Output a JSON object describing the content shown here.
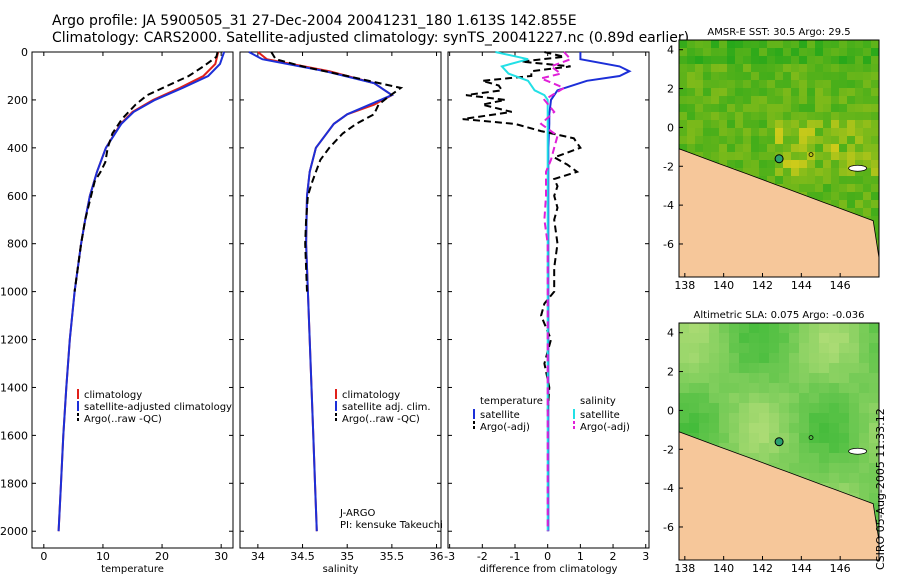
{
  "header": {
    "line1": "Argo profile: JA 5900505_31 27-Dec-2004 20041231_180 1.613S 142.855E",
    "line2": "Climatology: CARS2000. Satellite-adjusted climatology: synTS_20041227.nc (0.89d earlier)"
  },
  "credit": "CSIRO 05-Aug-2005 11:33:12",
  "colors": {
    "climatology": "#e0201a",
    "satellite": "#1c2fd8",
    "argo": "#000000",
    "satellite_salinity": "#22e0e6",
    "argo_salinity": "#e020d8",
    "land": "#f6c79a",
    "ocean_low": "#1aa51a",
    "ocean_high": "#f0d21a"
  },
  "chart_data": [
    {
      "type": "line",
      "id": "temperature",
      "xlabel": "temperature",
      "ylabel": "",
      "xlim": [
        -2,
        32
      ],
      "ylim": [
        2070,
        0
      ],
      "xticks": [
        0,
        10,
        20,
        30
      ],
      "yticks": [
        0,
        200,
        400,
        600,
        800,
        1000,
        1200,
        1400,
        1600,
        1800,
        2000
      ],
      "legend": [
        "climatology",
        "satellite-adjusted climatology",
        "Argo(..raw -QC)"
      ],
      "legend_position": "lower-right",
      "annotations": [],
      "series": [
        {
          "name": "climatology",
          "color": "climatology",
          "dash": "",
          "depth": [
            0,
            50,
            100,
            150,
            200,
            250,
            300,
            400,
            500,
            600,
            700,
            800,
            1000,
            1200,
            1400,
            1600,
            1800,
            2000
          ],
          "values": [
            29.5,
            29.0,
            27.0,
            23.0,
            18.5,
            15.0,
            13.0,
            10.5,
            9.0,
            7.8,
            7.0,
            6.3,
            5.2,
            4.4,
            3.8,
            3.3,
            2.9,
            2.5
          ]
        },
        {
          "name": "satellite-adjusted climatology",
          "color": "satellite",
          "dash": "",
          "depth": [
            0,
            50,
            100,
            150,
            200,
            250,
            300,
            400,
            500,
            600,
            700,
            800,
            1000,
            1200,
            1400,
            1600,
            1800,
            2000
          ],
          "values": [
            30.5,
            29.8,
            27.8,
            23.5,
            18.8,
            15.2,
            13.1,
            10.5,
            9.0,
            7.8,
            7.0,
            6.3,
            5.2,
            4.4,
            3.8,
            3.3,
            2.9,
            2.5
          ]
        },
        {
          "name": "Argo(..raw -QC)",
          "color": "argo",
          "dash": "7 4",
          "depth": [
            0,
            20,
            60,
            100,
            140,
            180,
            220,
            280,
            340,
            400,
            460,
            500,
            540,
            600,
            700,
            800,
            1000
          ],
          "values": [
            29.4,
            29.2,
            27.0,
            24.5,
            21.0,
            17.5,
            15.5,
            13.2,
            11.6,
            10.8,
            10.4,
            9.6,
            8.6,
            8.0,
            7.0,
            6.3,
            5.2
          ]
        }
      ]
    },
    {
      "type": "line",
      "id": "salinity",
      "xlabel": "salinity",
      "ylabel": "",
      "xlim": [
        33.8,
        36.05
      ],
      "ylim": [
        2070,
        0
      ],
      "xticks": [
        34,
        34.5,
        35,
        35.5,
        36
      ],
      "yticks": [],
      "legend": [
        "climatology",
        "satellite adj. clim.",
        "Argo(..raw -QC)"
      ],
      "legend_position": "lower-right",
      "annotations": [
        "J-ARGO",
        "PI: kensuke Takeuchi"
      ],
      "series": [
        {
          "name": "climatology",
          "color": "climatology",
          "dash": "",
          "depth": [
            0,
            30,
            80,
            130,
            180,
            220,
            260,
            300,
            400,
            500,
            600,
            800,
            1000,
            1200,
            1400,
            1600,
            1800,
            2000
          ],
          "values": [
            34.0,
            34.1,
            34.8,
            35.3,
            35.5,
            35.3,
            35.0,
            34.85,
            34.65,
            34.58,
            34.55,
            34.54,
            34.56,
            34.58,
            34.6,
            34.62,
            34.64,
            34.66
          ]
        },
        {
          "name": "satellite adj. clim.",
          "color": "satellite",
          "dash": "",
          "depth": [
            0,
            30,
            80,
            130,
            180,
            220,
            260,
            300,
            400,
            500,
            600,
            800,
            1000,
            1200,
            1400,
            1600,
            1800,
            2000
          ],
          "values": [
            33.9,
            34.05,
            34.75,
            35.3,
            35.5,
            35.25,
            35.0,
            34.85,
            34.65,
            34.58,
            34.55,
            34.54,
            34.56,
            34.58,
            34.6,
            34.62,
            34.64,
            34.66
          ]
        },
        {
          "name": "Argo(..raw -QC)",
          "color": "argo",
          "dash": "7 4",
          "depth": [
            0,
            30,
            60,
            100,
            150,
            190,
            220,
            260,
            300,
            340,
            400,
            450,
            500,
            550,
            600,
            700,
            800,
            900,
            1000
          ],
          "values": [
            34.15,
            34.2,
            34.5,
            35.0,
            35.6,
            35.45,
            35.35,
            35.3,
            35.1,
            34.95,
            34.8,
            34.7,
            34.65,
            34.6,
            34.56,
            34.54,
            34.53,
            34.54,
            34.55
          ]
        }
      ]
    },
    {
      "type": "line",
      "id": "difference",
      "xlabel": "difference from climatology",
      "ylabel": "",
      "xlim": [
        -3.05,
        3.1
      ],
      "ylim": [
        2070,
        0
      ],
      "xticks": [
        -3,
        -2,
        -1,
        0,
        1,
        2,
        3
      ],
      "yticks": [],
      "legend": [
        "temperature",
        "satellite",
        "Argo(-adj)",
        "salinity",
        "satellite",
        "Argo(-adj)"
      ],
      "legend_position": "lower-center",
      "annotations": [],
      "series": [
        {
          "name": "temperature satellite",
          "color": "satellite",
          "dash": "",
          "depth": [
            0,
            30,
            60,
            80,
            100,
            120,
            160,
            200,
            260,
            300,
            400,
            600,
            800,
            1000,
            1200,
            1400,
            1600,
            1800,
            2000
          ],
          "values": [
            1.0,
            1.0,
            2.2,
            2.5,
            2.2,
            1.2,
            0.3,
            0.1,
            0.05,
            0.05,
            0.02,
            0.02,
            0.02,
            0.02,
            0.02,
            0.02,
            0.02,
            0.02,
            0.02
          ]
        },
        {
          "name": "temperature Argo(-adj)",
          "color": "argo",
          "dash": "7 4",
          "depth": [
            0,
            20,
            40,
            60,
            80,
            100,
            120,
            140,
            160,
            180,
            200,
            220,
            250,
            280,
            300,
            330,
            360,
            400,
            440,
            470,
            500,
            530,
            560,
            600,
            650,
            700,
            800,
            900,
            1000,
            1050,
            1100,
            1200,
            1300,
            1400,
            1500
          ],
          "values": [
            -0.1,
            0.5,
            -0.8,
            0.7,
            -0.5,
            -0.5,
            -2.0,
            -1.5,
            -1.4,
            -2.5,
            -1.3,
            -2.0,
            -1.1,
            -2.6,
            -1.0,
            -0.2,
            0.8,
            1.0,
            0.2,
            0.6,
            0.9,
            0.2,
            0.3,
            0.2,
            0.3,
            0.2,
            0.3,
            0.2,
            0.2,
            -0.1,
            -0.2,
            0.1,
            -0.1,
            0.05,
            0.0
          ]
        },
        {
          "name": "salinity satellite",
          "color": "satellite_salinity",
          "dash": "",
          "depth": [
            0,
            30,
            60,
            90,
            120,
            160,
            180,
            200,
            300,
            400,
            600,
            800,
            1000,
            1200,
            1400,
            1600,
            1800,
            2000
          ],
          "values": [
            -1.6,
            -0.6,
            -1.4,
            -1.2,
            -0.6,
            -0.4,
            -0.1,
            0.0,
            0.0,
            0.0,
            0.0,
            0.0,
            0.0,
            0.0,
            0.0,
            0.0,
            0.0,
            0.0
          ]
        },
        {
          "name": "salinity Argo(-adj)",
          "color": "argo_salinity",
          "dash": "7 4",
          "depth": [
            0,
            30,
            60,
            90,
            110,
            150,
            200,
            250,
            300,
            350,
            400,
            450,
            500,
            600,
            700,
            800,
            1000,
            1200,
            1400,
            1600,
            1800,
            2000
          ],
          "values": [
            0.5,
            0.7,
            0.1,
            0.4,
            -0.2,
            0.5,
            -0.1,
            0.2,
            -0.2,
            0.3,
            0.2,
            0.1,
            -0.05,
            -0.05,
            -0.1,
            0.0,
            0.0,
            0.0,
            0.0,
            0.0,
            0.0,
            0.0
          ]
        }
      ]
    },
    {
      "type": "heatmap",
      "id": "sst_map",
      "title": "AMSR-E SST: 30.5 Argo: 29.5",
      "xlim": [
        137.7,
        148.0
      ],
      "ylim": [
        -7.7,
        4.5
      ],
      "xticks": [
        138,
        140,
        142,
        144,
        146
      ],
      "yticks": [
        4,
        2,
        0,
        -2,
        -4,
        -6
      ],
      "marker": {
        "lon": 142.855,
        "lat": -1.613
      },
      "field_min": 26,
      "field_max": 31.5,
      "field_note": "gridded SST, green (cool) to yellow (warm); land in tan"
    },
    {
      "type": "heatmap",
      "id": "sla_map",
      "title": "Altimetric SLA: 0.075 Argo: -0.036",
      "xlim": [
        137.7,
        148.0
      ],
      "ylim": [
        -7.7,
        4.5
      ],
      "xticks": [
        138,
        140,
        142,
        144,
        146
      ],
      "yticks": [
        4,
        2,
        0,
        -2,
        -4,
        -6
      ],
      "marker": {
        "lon": 142.855,
        "lat": -1.613
      },
      "field_min": -0.05,
      "field_max": 0.2,
      "field_note": "smooth SLA field, green (low) to pale yellow (high); land in tan"
    }
  ]
}
